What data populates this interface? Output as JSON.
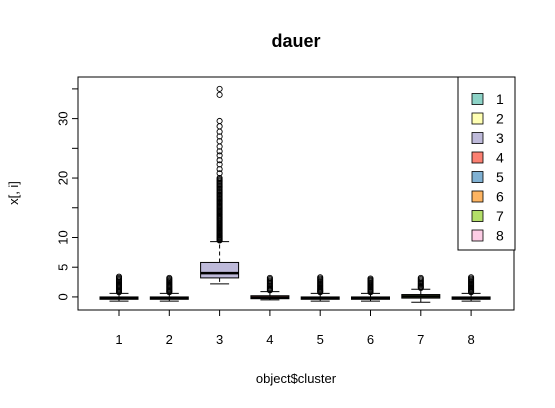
{
  "chart_data": {
    "type": "boxplot",
    "title": "dauer",
    "xlabel": "object$cluster",
    "ylabel": "x[, i]",
    "ylim": [
      -2.2,
      37
    ],
    "yticks": [
      0,
      5,
      10,
      20,
      30
    ],
    "yminor_ticks": [
      15,
      25,
      35
    ],
    "categories": [
      "1",
      "2",
      "3",
      "4",
      "5",
      "6",
      "7",
      "8"
    ],
    "series": [
      {
        "name": "1",
        "color": "#8DD3C7",
        "whisker_low": -0.7,
        "q1": -0.4,
        "median": -0.2,
        "q3": 0.0,
        "whisker_high": 0.6,
        "outliers_from": 0.8,
        "outliers_to": 3.4,
        "outlier_count": 16
      },
      {
        "name": "2",
        "color": "#FFFFB3",
        "whisker_low": -0.7,
        "q1": -0.4,
        "median": -0.2,
        "q3": 0.0,
        "whisker_high": 0.6,
        "outliers_from": 0.8,
        "outliers_to": 3.2,
        "outlier_count": 15
      },
      {
        "name": "3",
        "color": "#BEBADA",
        "whisker_low": 2.2,
        "q1": 3.2,
        "median": 4.0,
        "q3": 5.8,
        "whisker_high": 9.3,
        "outliers_from": 9.5,
        "outliers_to": 20.0,
        "outlier_count": 60,
        "extra_outliers": [
          20.8,
          21.5,
          22.3,
          23.0,
          23.8,
          24.5,
          25.3,
          26.2,
          27.0,
          27.8,
          28.7,
          29.6,
          34.0,
          35.0
        ]
      },
      {
        "name": "4",
        "color": "#FB8072",
        "whisker_low": -0.5,
        "q1": -0.3,
        "median": -0.1,
        "q3": 0.2,
        "whisker_high": 0.9,
        "outliers_from": 1.1,
        "outliers_to": 3.2,
        "outlier_count": 12
      },
      {
        "name": "5",
        "color": "#80B1D3",
        "whisker_low": -0.7,
        "q1": -0.4,
        "median": -0.2,
        "q3": 0.0,
        "whisker_high": 0.6,
        "outliers_from": 0.8,
        "outliers_to": 3.3,
        "outlier_count": 15
      },
      {
        "name": "6",
        "color": "#FDB462",
        "whisker_low": -0.7,
        "q1": -0.4,
        "median": -0.2,
        "q3": 0.0,
        "whisker_high": 0.6,
        "outliers_from": 0.8,
        "outliers_to": 3.1,
        "outlier_count": 15
      },
      {
        "name": "7",
        "color": "#B3DE69",
        "whisker_low": -0.9,
        "q1": -0.2,
        "median": 0.1,
        "q3": 0.4,
        "whisker_high": 1.3,
        "outliers_from": 1.5,
        "outliers_to": 3.2,
        "outlier_count": 10
      },
      {
        "name": "8",
        "color": "#FCCDE5",
        "whisker_low": -0.7,
        "q1": -0.4,
        "median": -0.2,
        "q3": 0.0,
        "whisker_high": 0.6,
        "outliers_from": 0.8,
        "outliers_to": 3.3,
        "outlier_count": 15
      }
    ],
    "legend": {
      "placement": "top-right",
      "entries": [
        {
          "label": "1",
          "color": "#8DD3C7"
        },
        {
          "label": "2",
          "color": "#FFFFB3"
        },
        {
          "label": "3",
          "color": "#BEBADA"
        },
        {
          "label": "4",
          "color": "#FB8072"
        },
        {
          "label": "5",
          "color": "#80B1D3"
        },
        {
          "label": "6",
          "color": "#FDB462"
        },
        {
          "label": "7",
          "color": "#B3DE69"
        },
        {
          "label": "8",
          "color": "#FCCDE5"
        }
      ]
    },
    "grid": false
  }
}
